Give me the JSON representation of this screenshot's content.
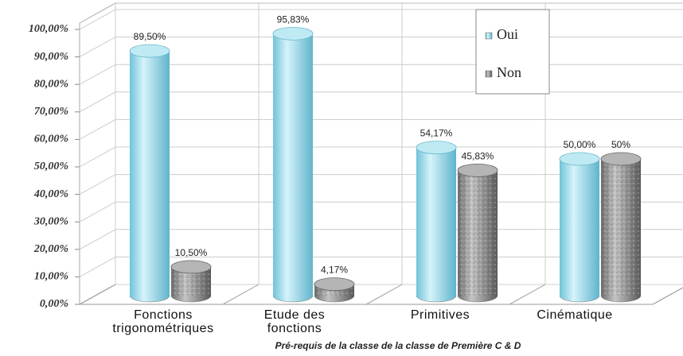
{
  "chart_data": {
    "type": "bar",
    "x_label": "Pré-requis de la classe de  la classe de Première C & D",
    "categories": [
      "Fonctions trigonométriques",
      "Etude des fonctions",
      "Primitives",
      "Cinématique"
    ],
    "series": [
      {
        "name": "Oui",
        "color": "#8fd6e6",
        "values": [
          89.5,
          95.83,
          54.17,
          50
        ],
        "value_labels": [
          "89,50%",
          "95,83%",
          "54,17%",
          "50,00%"
        ]
      },
      {
        "name": "Non",
        "color": "#9a9a9a",
        "values": [
          10.5,
          4.17,
          45.83,
          50
        ],
        "value_labels": [
          "10,50%",
          "4,17%",
          "45,83%",
          "50%"
        ]
      }
    ],
    "ylim": [
      0,
      100
    ],
    "yticks": [
      {
        "value": 0,
        "label": "0,00%"
      },
      {
        "value": 10,
        "label": "10,00%"
      },
      {
        "value": 20,
        "label": "20,00%"
      },
      {
        "value": 30,
        "label": "30,00%"
      },
      {
        "value": 40,
        "label": "40,00%"
      },
      {
        "value": 50,
        "label": "50,00%"
      },
      {
        "value": 60,
        "label": "60,00%"
      },
      {
        "value": 70,
        "label": "70,00%"
      },
      {
        "value": 80,
        "label": "80,00%"
      },
      {
        "value": 90,
        "label": "90,00%"
      },
      {
        "value": 100,
        "label": "100,00%"
      }
    ],
    "grid": true,
    "legend": "top-right"
  }
}
